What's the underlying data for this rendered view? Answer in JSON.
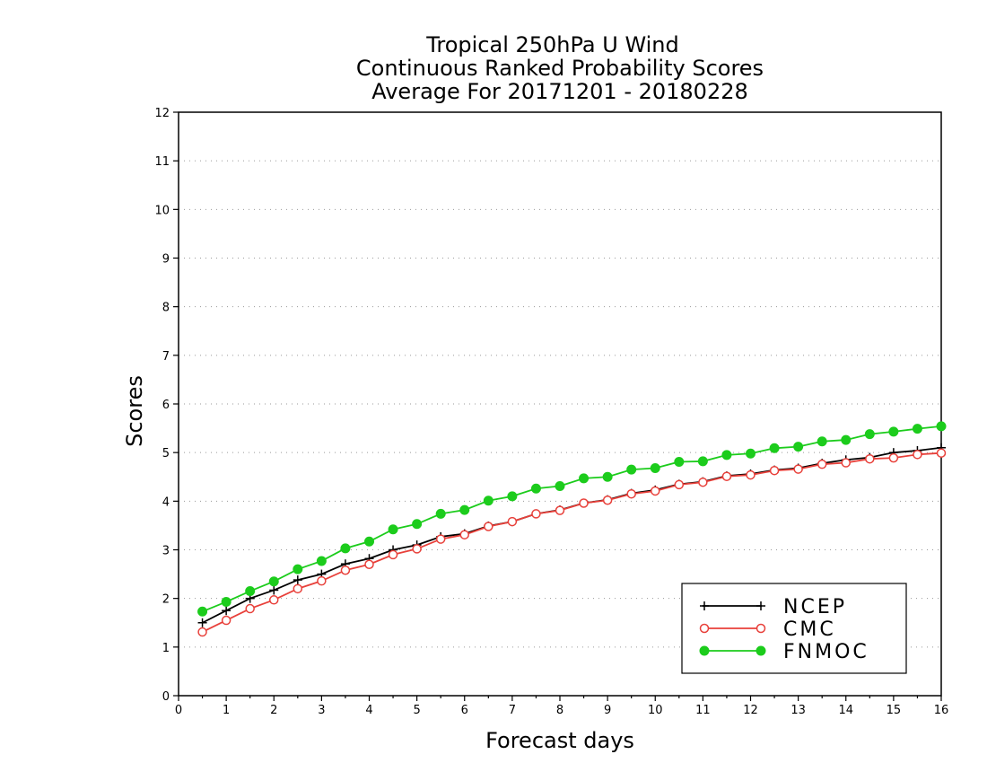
{
  "chart_data": {
    "type": "line",
    "title": [
      "Tropical 250hPa U Wind",
      "Continuous Ranked Probability Scores",
      "Average For 20171201 - 20180228"
    ],
    "xlabel": "Forecast days",
    "ylabel": "Scores",
    "xlim": [
      0,
      16
    ],
    "ylim": [
      0,
      12
    ],
    "xticks": [
      "0",
      "1",
      "2",
      "3",
      "4",
      "5",
      "6",
      "7",
      "8",
      "9",
      "10",
      "11",
      "12",
      "13",
      "14",
      "15",
      "16"
    ],
    "yticks": [
      "0",
      "1",
      "2",
      "3",
      "4",
      "5",
      "6",
      "7",
      "8",
      "9",
      "10",
      "11",
      "12"
    ],
    "grid": "horizontal dotted",
    "legend_position": "bottom-right",
    "x": [
      0.5,
      1,
      1.5,
      2,
      2.5,
      3,
      3.5,
      4,
      4.5,
      5,
      5.5,
      6,
      6.5,
      7,
      7.5,
      8,
      8.5,
      9,
      9.5,
      10,
      10.5,
      11,
      11.5,
      12,
      12.5,
      13,
      13.5,
      14,
      14.5,
      15,
      15.5,
      16
    ],
    "series": [
      {
        "name": "NCEP",
        "color": "#000000",
        "marker": "plus",
        "values": [
          1.5,
          1.75,
          2.0,
          2.17,
          2.38,
          2.5,
          2.71,
          2.82,
          3.0,
          3.1,
          3.27,
          3.33,
          3.49,
          3.58,
          3.74,
          3.82,
          3.96,
          4.03,
          4.16,
          4.23,
          4.35,
          4.4,
          4.52,
          4.56,
          4.64,
          4.68,
          4.78,
          4.85,
          4.9,
          5.0,
          5.04,
          5.1
        ]
      },
      {
        "name": "CMC",
        "color": "#e8403a",
        "marker": "open-circle",
        "values": [
          1.31,
          1.55,
          1.79,
          1.97,
          2.2,
          2.36,
          2.58,
          2.7,
          2.9,
          3.02,
          3.22,
          3.31,
          3.48,
          3.58,
          3.74,
          3.81,
          3.96,
          4.02,
          4.15,
          4.21,
          4.34,
          4.39,
          4.51,
          4.54,
          4.63,
          4.66,
          4.76,
          4.79,
          4.87,
          4.89,
          4.96,
          4.99
        ]
      },
      {
        "name": "FNMOC",
        "color": "#1ccc1c",
        "marker": "filled-circle",
        "values": [
          1.73,
          1.93,
          2.15,
          2.35,
          2.6,
          2.77,
          3.03,
          3.17,
          3.42,
          3.53,
          3.74,
          3.82,
          4.01,
          4.1,
          4.26,
          4.31,
          4.47,
          4.5,
          4.65,
          4.68,
          4.81,
          4.82,
          4.95,
          4.98,
          5.09,
          5.12,
          5.23,
          5.26,
          5.38,
          5.43,
          5.49,
          5.54
        ]
      }
    ]
  }
}
